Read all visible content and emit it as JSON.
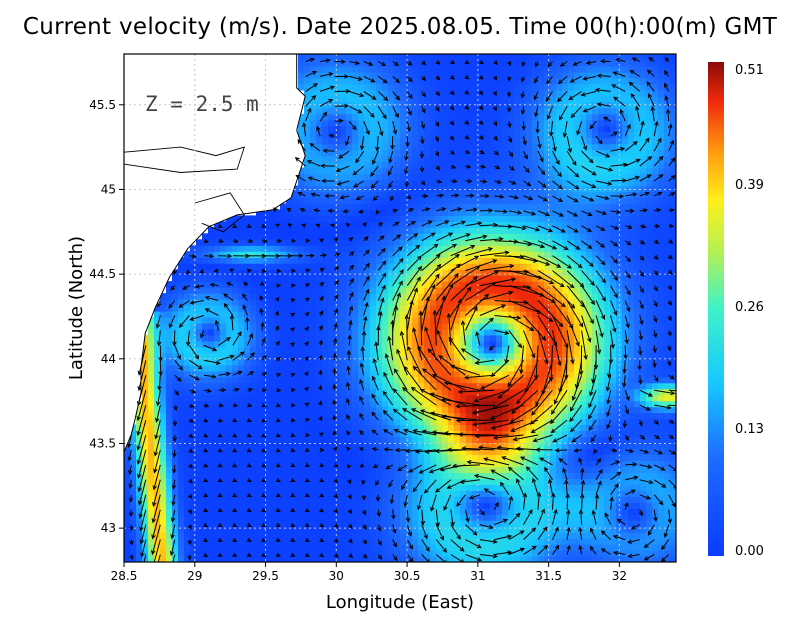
{
  "title": "Current velocity (m/s). Date 2025.08.05. Time 00(h):00(m) GMT",
  "annotation": "Z = 2.5 m",
  "chart_data": {
    "type": "heatmap",
    "variable": "Current velocity (m/s)",
    "xlabel": "Longitude (East)",
    "ylabel": "Latitude (North)",
    "xlim": [
      28.5,
      32.4
    ],
    "ylim": [
      42.8,
      45.8
    ],
    "x_ticks": [
      "28.5",
      "29",
      "29.5",
      "30",
      "30.5",
      "31",
      "31.5",
      "32"
    ],
    "y_ticks": [
      "43",
      "43.5",
      "44",
      "44.5",
      "45",
      "45.5"
    ],
    "grid": true,
    "colorbar": {
      "min": 0.0,
      "max": 0.51,
      "tick_labels": [
        "0.51",
        "0.39",
        "0.26",
        "0.13",
        "0.00"
      ]
    },
    "features": [
      {
        "name": "anticyclonic eddy core",
        "lon": 31.1,
        "lat": 44.1,
        "max_speed": 0.45
      },
      {
        "name": "coastal jet",
        "lon": 28.7,
        "lat": 43.5,
        "max_speed": 0.42
      },
      {
        "name": "eastern boundary jet",
        "lon": 32.3,
        "lat": 43.8,
        "max_speed": 0.35
      }
    ]
  },
  "colors": {
    "background": "#ffffff",
    "land": "#ffffff",
    "coastline": "#000000",
    "grid": "#c8c8c8",
    "vector": "#000000"
  }
}
